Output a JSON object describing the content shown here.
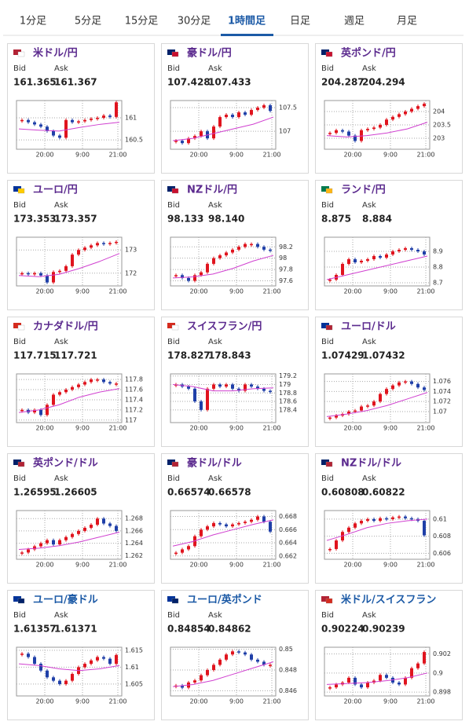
{
  "tabs": [
    "1分足",
    "5分足",
    "15分足",
    "30分足",
    "1時間足",
    "日足",
    "週足",
    "月足"
  ],
  "bid_label": "Bid",
  "ask_label": "Ask",
  "x_labels": [
    "20:00",
    "9:00",
    "21:00"
  ],
  "pairs": [
    {
      "name": "米ドル/円",
      "bid": "161.365",
      "ask": "161.367",
      "ylim": [
        160.29,
        161.39
      ],
      "yticks": [
        160.5,
        161
      ],
      "closes": [
        160.95,
        160.9,
        160.85,
        160.8,
        160.7,
        160.6,
        160.55,
        160.95,
        160.9,
        160.92,
        160.95,
        160.98,
        161.0,
        161.05,
        161.02,
        161.35
      ],
      "ma": [
        160.75,
        160.72,
        160.7,
        160.78,
        160.85,
        160.9
      ]
    },
    {
      "name": "豪ドル/円",
      "bid": "107.428",
      "ask": "107.433",
      "ylim": [
        106.62,
        107.65
      ],
      "yticks": [
        107,
        107.5
      ],
      "closes": [
        106.8,
        106.75,
        106.85,
        106.9,
        107.0,
        106.85,
        107.1,
        107.3,
        107.35,
        107.3,
        107.4,
        107.35,
        107.45,
        107.5,
        107.55,
        107.43
      ],
      "ma": [
        106.8,
        106.85,
        106.95,
        107.05,
        107.15,
        107.3
      ]
    },
    {
      "name": "英ポンド/円",
      "bid": "204.287",
      "ask": "204.294",
      "ylim": [
        202.59,
        204.41
      ],
      "yticks": [
        203,
        203.5,
        204
      ],
      "closes": [
        203.2,
        203.3,
        203.25,
        203.1,
        202.9,
        203.3,
        203.35,
        203.4,
        203.5,
        203.7,
        203.8,
        203.9,
        204.0,
        204.1,
        204.2,
        204.29
      ],
      "ma": [
        203.1,
        203.05,
        203.1,
        203.2,
        203.35,
        203.6
      ]
    },
    {
      "name": "ユーロ/円",
      "bid": "173.353",
      "ask": "173.357",
      "ylim": [
        171.45,
        173.55
      ],
      "yticks": [
        172,
        173
      ],
      "closes": [
        172.0,
        171.95,
        172.0,
        171.9,
        171.6,
        172.05,
        172.1,
        172.3,
        172.8,
        173.0,
        173.1,
        173.2,
        173.3,
        173.25,
        173.3,
        173.35
      ],
      "ma": [
        171.9,
        171.85,
        171.95,
        172.2,
        172.5,
        172.85
      ]
    },
    {
      "name": "NZドル/円",
      "bid": "98.133",
      "ask": "98.140",
      "ylim": [
        97.51,
        98.37
      ],
      "yticks": [
        97.6,
        97.8,
        98,
        98.2
      ],
      "closes": [
        97.7,
        97.65,
        97.6,
        97.7,
        97.75,
        97.9,
        98.0,
        98.05,
        98.1,
        98.15,
        98.2,
        98.25,
        98.25,
        98.2,
        98.15,
        98.13
      ],
      "ma": [
        97.65,
        97.67,
        97.72,
        97.82,
        97.95,
        98.05
      ]
    },
    {
      "name": "ランド/円",
      "bid": "8.875",
      "ask": "8.884",
      "ylim": [
        8.68,
        8.99
      ],
      "yticks": [
        8.7,
        8.8,
        8.9
      ],
      "closes": [
        8.72,
        8.75,
        8.82,
        8.85,
        8.83,
        8.84,
        8.85,
        8.87,
        8.86,
        8.88,
        8.9,
        8.91,
        8.92,
        8.91,
        8.9,
        8.88
      ],
      "ma": [
        8.72,
        8.75,
        8.78,
        8.81,
        8.84,
        8.87
      ]
    },
    {
      "name": "カナダドル/円",
      "bid": "117.715",
      "ask": "117.721",
      "ylim": [
        116.95,
        117.91
      ],
      "yticks": [
        117,
        117.2,
        117.4,
        117.6,
        117.8
      ],
      "closes": [
        117.2,
        117.15,
        117.2,
        117.1,
        117.3,
        117.5,
        117.55,
        117.6,
        117.65,
        117.7,
        117.75,
        117.8,
        117.8,
        117.75,
        117.72,
        117.72
      ],
      "ma": [
        117.15,
        117.2,
        117.3,
        117.45,
        117.55,
        117.62
      ]
    },
    {
      "name": "スイスフラン/円",
      "bid": "178.827",
      "ask": "178.843",
      "ylim": [
        178.1,
        179.25
      ],
      "yticks": [
        178.4,
        178.6,
        178.8,
        179,
        179.2
      ],
      "closes": [
        179.0,
        178.95,
        178.9,
        178.6,
        178.4,
        178.9,
        179.0,
        178.95,
        179.0,
        178.9,
        178.85,
        179.0,
        178.95,
        178.9,
        178.85,
        178.83
      ],
      "ma": [
        179.0,
        178.95,
        178.85,
        178.85,
        178.9,
        178.92
      ]
    },
    {
      "name": "ユーロ/ドル",
      "bid": "1.07429",
      "ask": "1.07432",
      "ylim": [
        1.0678,
        1.0775
      ],
      "yticks": [
        1.07,
        1.072,
        1.074,
        1.076
      ],
      "closes": [
        1.0688,
        1.0692,
        1.0695,
        1.07,
        1.0702,
        1.071,
        1.0712,
        1.072,
        1.0735,
        1.0745,
        1.0752,
        1.0758,
        1.076,
        1.0755,
        1.0748,
        1.0743
      ],
      "ma": [
        1.069,
        1.0695,
        1.0702,
        1.0712,
        1.0725,
        1.0738
      ]
    },
    {
      "name": "英ポンド/ドル",
      "bid": "1.26595",
      "ask": "1.26605",
      "ylim": [
        1.2614,
        1.2693
      ],
      "yticks": [
        1.262,
        1.264,
        1.266,
        1.268
      ],
      "closes": [
        1.2625,
        1.263,
        1.2635,
        1.264,
        1.2645,
        1.2638,
        1.2645,
        1.265,
        1.2655,
        1.266,
        1.2665,
        1.267,
        1.268,
        1.2672,
        1.2668,
        1.266
      ],
      "ma": [
        1.263,
        1.2632,
        1.2636,
        1.2642,
        1.265,
        1.2658
      ]
    },
    {
      "name": "豪ドル/ドル",
      "bid": "0.66574",
      "ask": "0.66578",
      "ylim": [
        0.6615,
        0.6689
      ],
      "yticks": [
        0.662,
        0.664,
        0.666,
        0.668
      ],
      "closes": [
        0.6625,
        0.663,
        0.6635,
        0.665,
        0.666,
        0.6665,
        0.667,
        0.6668,
        0.6665,
        0.6668,
        0.667,
        0.6672,
        0.6675,
        0.668,
        0.6672,
        0.6657
      ],
      "ma": [
        0.6635,
        0.6642,
        0.6652,
        0.666,
        0.6668,
        0.6675
      ]
    },
    {
      "name": "NZドル/ドル",
      "bid": "0.60808",
      "ask": "0.60822",
      "ylim": [
        0.6053,
        0.611
      ],
      "yticks": [
        0.606,
        0.608,
        0.61
      ],
      "closes": [
        0.6065,
        0.6075,
        0.6085,
        0.609,
        0.6095,
        0.6098,
        0.61,
        0.6098,
        0.6101,
        0.61,
        0.6102,
        0.6103,
        0.6101,
        0.61,
        0.6098,
        0.6081
      ],
      "ma": [
        0.6075,
        0.6082,
        0.609,
        0.6095,
        0.6098,
        0.61
      ]
    },
    {
      "name": "ユーロ/豪ドル",
      "bid": "1.61357",
      "ask": "1.61371",
      "ylim": [
        1.6015,
        1.6159
      ],
      "yticks": [
        1.605,
        1.61,
        1.615
      ],
      "closes": [
        1.614,
        1.613,
        1.611,
        1.609,
        1.607,
        1.606,
        1.605,
        1.606,
        1.608,
        1.61,
        1.611,
        1.612,
        1.613,
        1.6125,
        1.611,
        1.6136
      ],
      "ma": [
        1.611,
        1.6105,
        1.6095,
        1.609,
        1.6095,
        1.6105
      ]
    },
    {
      "name": "ユーロ/英ポンド",
      "bid": "0.84854",
      "ask": "0.84862",
      "ylim": [
        0.8455,
        0.8502
      ],
      "yticks": [
        0.846,
        0.848,
        0.85
      ],
      "closes": [
        0.8465,
        0.8463,
        0.8468,
        0.847,
        0.8475,
        0.848,
        0.8485,
        0.849,
        0.8495,
        0.8498,
        0.8497,
        0.8495,
        0.849,
        0.8488,
        0.8485,
        0.8485
      ],
      "ma": [
        0.8464,
        0.8466,
        0.847,
        0.8476,
        0.8482,
        0.8488
      ]
    },
    {
      "name": "米ドル/スイスフラン",
      "bid": "0.90224",
      "ask": "0.90239",
      "ylim": [
        0.8976,
        0.9027
      ],
      "yticks": [
        0.898,
        0.9,
        0.902
      ],
      "closes": [
        0.8985,
        0.8988,
        0.899,
        0.8995,
        0.8988,
        0.8985,
        0.899,
        0.8992,
        0.8998,
        0.8995,
        0.899,
        0.8988,
        0.8995,
        0.9005,
        0.901,
        0.9022
      ],
      "ma": [
        0.8988,
        0.8989,
        0.899,
        0.8992,
        0.8995,
        0.9
      ]
    }
  ]
}
